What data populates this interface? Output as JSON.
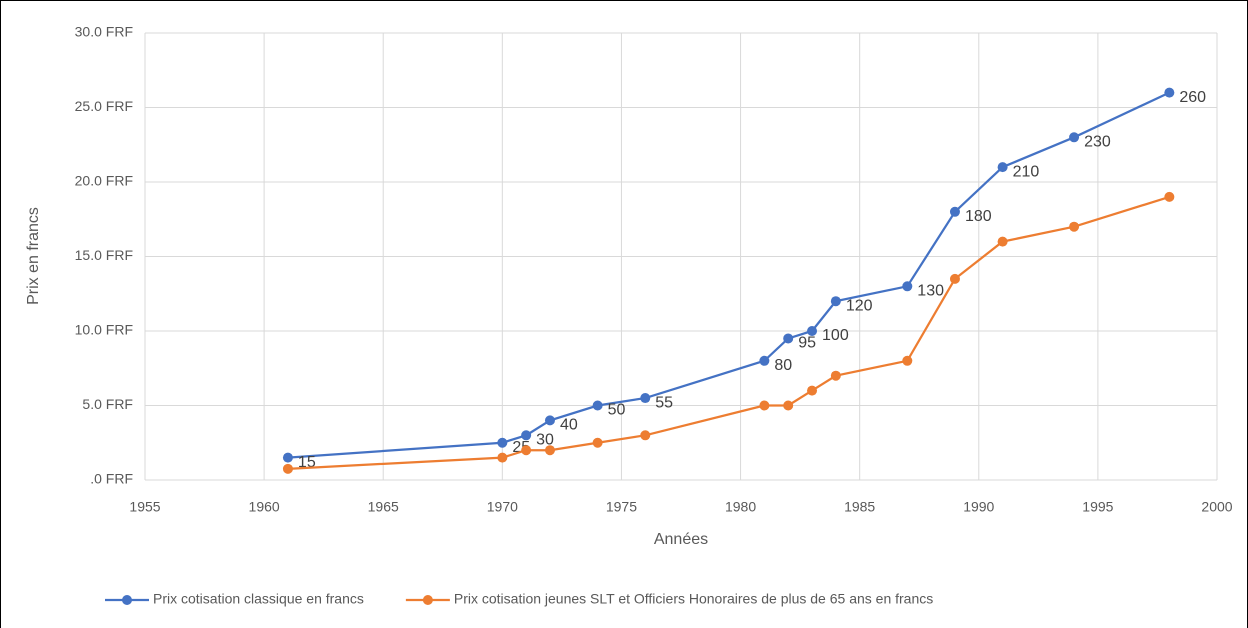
{
  "chart_data": {
    "type": "line",
    "x_label": "Années",
    "y_label": "Prix en francs",
    "x": [
      1961,
      1970,
      1971,
      1972,
      1974,
      1976,
      1981,
      1982,
      1983,
      1984,
      1987,
      1989,
      1991,
      1994,
      1998
    ],
    "series": [
      {
        "name": "Prix cotisation classique en francs",
        "color": "#4472c4",
        "values": [
          1.5,
          2.5,
          3,
          4,
          5,
          5.5,
          8,
          9.5,
          10,
          12,
          13,
          18,
          21,
          23,
          26
        ],
        "value_labels": [
          "15",
          "25",
          "30",
          "40",
          "50",
          "55",
          "80",
          "95",
          "100",
          "120",
          "130",
          "180",
          "210",
          "230",
          "260"
        ]
      },
      {
        "name": "Prix cotisation jeunes SLT et Officiers Honoraires de plus de 65 ans en francs",
        "color": "#ed7d31",
        "values": [
          0.75,
          1.5,
          2,
          2,
          2.5,
          3,
          5,
          5,
          6,
          7,
          8,
          13.5,
          16,
          17,
          19
        ]
      }
    ],
    "xlim": [
      1955,
      2000
    ],
    "xticks": [
      1955,
      1960,
      1965,
      1970,
      1975,
      1980,
      1985,
      1990,
      1995,
      2000
    ],
    "ylim": [
      0,
      30
    ],
    "yticks": [
      {
        "value": 0,
        "label": ".0 FRF"
      },
      {
        "value": 5,
        "label": "5.0 FRF"
      },
      {
        "value": 10,
        "label": "10.0 FRF"
      },
      {
        "value": 15,
        "label": "15.0 FRF"
      },
      {
        "value": 20,
        "label": "20.0 FRF"
      },
      {
        "value": 25,
        "label": "25.0 FRF"
      },
      {
        "value": 30,
        "label": "30.0 FRF"
      }
    ],
    "grid": true,
    "legend": "bottom"
  }
}
